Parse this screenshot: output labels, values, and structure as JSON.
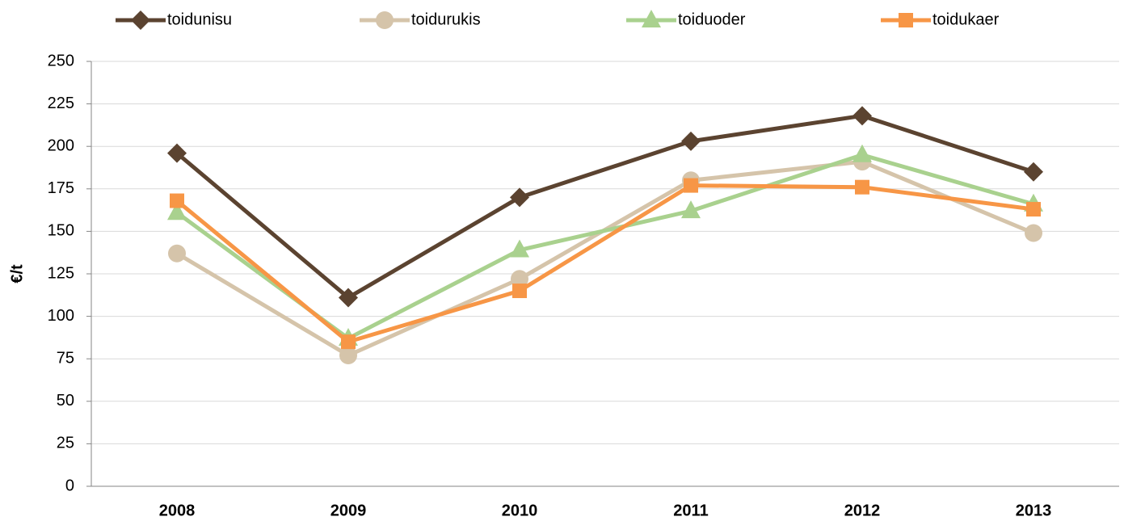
{
  "chart_data": {
    "type": "line",
    "y_label": "€/t",
    "categories": [
      "2008",
      "2009",
      "2010",
      "2011",
      "2012",
      "2013"
    ],
    "series": [
      {
        "name": "toidunisu",
        "color": "#5b4330",
        "marker": "diamond",
        "values": [
          196,
          111,
          170,
          203,
          218,
          185
        ]
      },
      {
        "name": "toidurukis",
        "color": "#d5c4aa",
        "marker": "circle",
        "values": [
          137,
          77,
          122,
          180,
          191,
          149
        ]
      },
      {
        "name": "toiduoder",
        "color": "#a9d18e",
        "marker": "triangle",
        "values": [
          161,
          87,
          139,
          162,
          195,
          166
        ]
      },
      {
        "name": "toidukaer",
        "color": "#f79646",
        "marker": "square",
        "values": [
          168,
          85,
          115,
          177,
          176,
          163
        ]
      }
    ],
    "ylim": [
      0,
      250
    ],
    "yticks": [
      0,
      25,
      50,
      75,
      100,
      125,
      150,
      175,
      200,
      225,
      250
    ],
    "grid": true,
    "legend": "top"
  }
}
